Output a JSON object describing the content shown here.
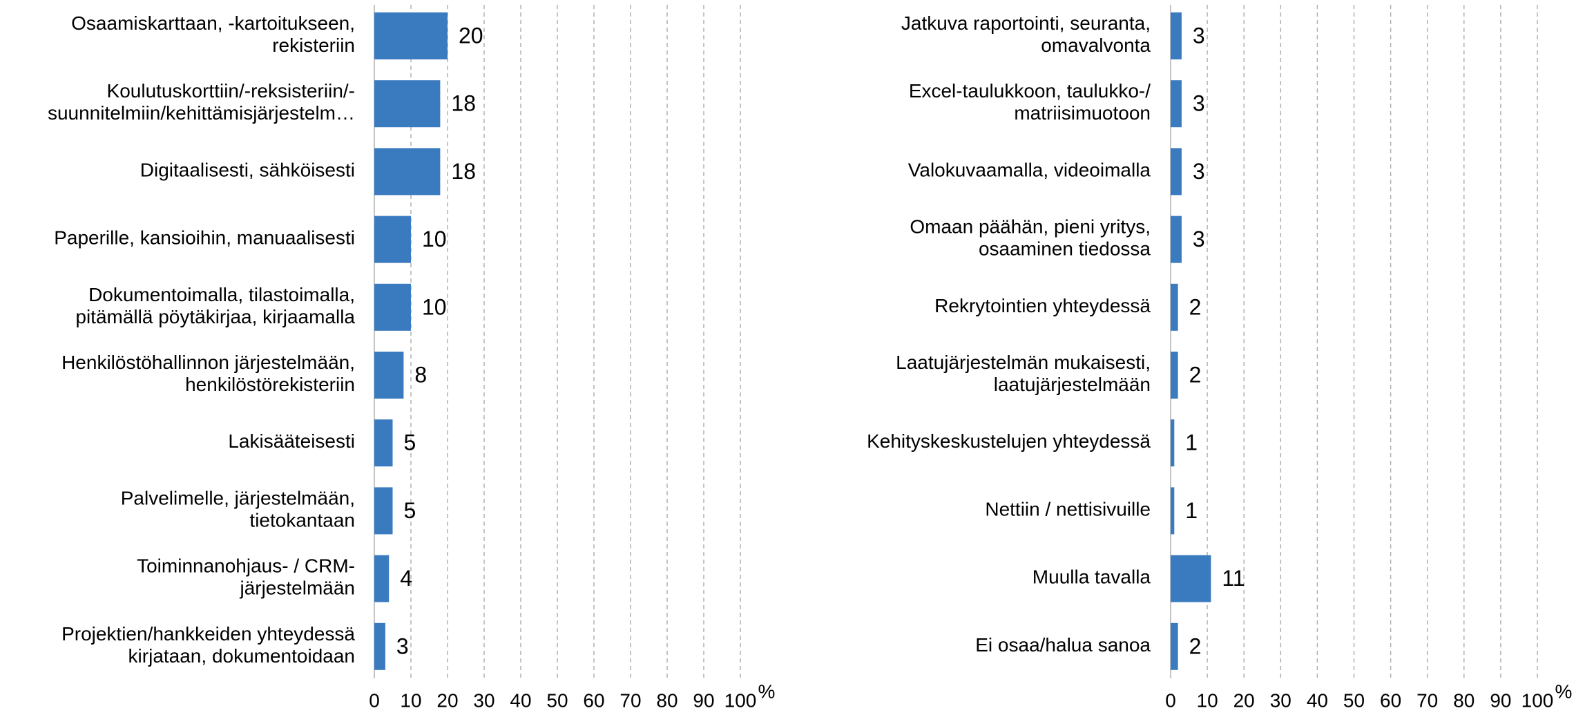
{
  "chart_data": [
    {
      "type": "barh",
      "color": "#3a7abf",
      "xlabel": "%",
      "xlim": [
        0,
        100
      ],
      "xticks": [
        0,
        10,
        20,
        30,
        40,
        50,
        60,
        70,
        80,
        90,
        100
      ],
      "grid": true,
      "categories": [
        [
          "Osaamiskarttaan, -kartoitukseen,",
          "rekisteriin"
        ],
        [
          "Koulutuskorttiin/-reksisteriin/-",
          "suunnitelmiin/kehittämisjärjestelm…"
        ],
        [
          "Digitaalisesti, sähköisesti"
        ],
        [
          "Paperille, kansioihin, manuaalisesti"
        ],
        [
          "Dokumentoimalla, tilastoimalla,",
          "pitämällä pöytäkirjaa, kirjaamalla"
        ],
        [
          "Henkilöstöhallinnon järjestelmään,",
          "henkilöstörekisteriin"
        ],
        [
          "Lakisääteisesti"
        ],
        [
          "Palvelimelle, järjestelmään,",
          "tietokantaan"
        ],
        [
          "Toiminnanohjaus- / CRM-",
          "järjestelmään"
        ],
        [
          "Projektien/hankkeiden yhteydessä",
          "kirjataan, dokumentoidaan"
        ]
      ],
      "values": [
        20,
        18,
        18,
        10,
        10,
        8,
        5,
        5,
        4,
        3
      ]
    },
    {
      "type": "barh",
      "color": "#3a7abf",
      "xlabel": "%",
      "xlim": [
        0,
        100
      ],
      "xticks": [
        0,
        10,
        20,
        30,
        40,
        50,
        60,
        70,
        80,
        90,
        100
      ],
      "grid": true,
      "categories": [
        [
          "Jatkuva raportointi, seuranta,",
          "omavalvonta"
        ],
        [
          "Excel-taulukkoon, taulukko-/",
          "matriisimuotoon"
        ],
        [
          "Valokuvaamalla, videoimalla"
        ],
        [
          "Omaan päähän, pieni yritys,",
          "osaaminen tiedossa"
        ],
        [
          "Rekrytointien yhteydessä"
        ],
        [
          "Laatujärjestelmän mukaisesti,",
          "laatujärjestelmään"
        ],
        [
          "Kehityskeskustelujen yhteydessä"
        ],
        [
          "Nettiin / nettisivuille"
        ],
        [
          "Muulla tavalla"
        ],
        [
          "Ei osaa/halua sanoa"
        ]
      ],
      "values": [
        3,
        3,
        3,
        3,
        2,
        2,
        1,
        1,
        11,
        2
      ]
    }
  ]
}
